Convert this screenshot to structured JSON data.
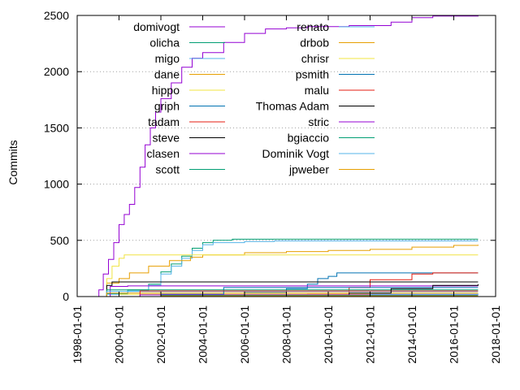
{
  "chart_data": {
    "type": "line",
    "title": "",
    "xlabel": "",
    "ylabel": "Commits",
    "x_axis": "date",
    "xlim": [
      "1998-01-01",
      "2018-01-01"
    ],
    "ylim": [
      0,
      2500
    ],
    "x_ticks": [
      "1998-01-01",
      "2000-01-01",
      "2002-01-01",
      "2004-01-01",
      "2006-01-01",
      "2008-01-01",
      "2010-01-01",
      "2012-01-01",
      "2014-01-01",
      "2016-01-01",
      "2018-01-01"
    ],
    "y_ticks": [
      "0",
      "500",
      "1000",
      "1500",
      "2000",
      "2500"
    ],
    "grid": "dotted",
    "legend_position": "top, two columns",
    "series": [
      {
        "name": "domivogt",
        "color": "#9400d3",
        "points": [
          [
            "1998-12-01",
            0
          ],
          [
            "1999-01-15",
            60
          ],
          [
            "1999-04-01",
            200
          ],
          [
            "1999-07-01",
            330
          ],
          [
            "1999-10-01",
            480
          ],
          [
            "2000-01-01",
            640
          ],
          [
            "2000-04-01",
            730
          ],
          [
            "2000-07-01",
            820
          ],
          [
            "2000-10-01",
            970
          ],
          [
            "2001-01-01",
            1150
          ],
          [
            "2001-04-01",
            1350
          ],
          [
            "2001-07-01",
            1500
          ],
          [
            "2001-10-01",
            1640
          ],
          [
            "2002-01-01",
            1760
          ],
          [
            "2002-07-01",
            1900
          ],
          [
            "2003-01-01",
            2040
          ],
          [
            "2003-07-01",
            2120
          ],
          [
            "2004-01-01",
            2170
          ],
          [
            "2005-01-01",
            2260
          ],
          [
            "2006-01-01",
            2340
          ],
          [
            "2007-01-01",
            2380
          ],
          [
            "2008-01-01",
            2390
          ],
          [
            "2009-01-01",
            2400
          ],
          [
            "2011-01-01",
            2410
          ],
          [
            "2013-01-01",
            2440
          ],
          [
            "2014-01-01",
            2480
          ],
          [
            "2015-01-01",
            2495
          ],
          [
            "2017-03-01",
            2500
          ]
        ]
      },
      {
        "name": "olicha",
        "color": "#009e73",
        "points": [
          [
            "1999-01-01",
            0
          ],
          [
            "1999-06-01",
            25
          ],
          [
            "2000-06-01",
            60
          ],
          [
            "2001-06-01",
            110
          ],
          [
            "2002-01-01",
            220
          ],
          [
            "2002-07-01",
            290
          ],
          [
            "2003-01-01",
            360
          ],
          [
            "2003-07-01",
            430
          ],
          [
            "2004-01-01",
            480
          ],
          [
            "2004-07-01",
            500
          ],
          [
            "2005-06-01",
            510
          ],
          [
            "2017-03-01",
            510
          ]
        ]
      },
      {
        "name": "migo",
        "color": "#56b4e9",
        "points": [
          [
            "1999-01-01",
            0
          ],
          [
            "1999-06-01",
            20
          ],
          [
            "2000-06-01",
            50
          ],
          [
            "2001-06-01",
            100
          ],
          [
            "2002-01-01",
            200
          ],
          [
            "2002-07-01",
            270
          ],
          [
            "2003-01-01",
            340
          ],
          [
            "2003-07-01",
            410
          ],
          [
            "2004-01-01",
            460
          ],
          [
            "2004-07-01",
            480
          ],
          [
            "2006-01-01",
            490
          ],
          [
            "2007-06-01",
            495
          ],
          [
            "2017-03-01",
            495
          ]
        ]
      },
      {
        "name": "dane",
        "color": "#e69f00",
        "points": [
          [
            "1999-01-01",
            0
          ],
          [
            "1999-06-01",
            120
          ],
          [
            "2000-01-01",
            160
          ],
          [
            "2000-07-01",
            210
          ],
          [
            "2001-06-01",
            270
          ],
          [
            "2002-06-01",
            320
          ],
          [
            "2003-06-01",
            350
          ],
          [
            "2004-01-01",
            370
          ],
          [
            "2006-01-01",
            390
          ],
          [
            "2008-01-01",
            400
          ],
          [
            "2010-01-01",
            410
          ],
          [
            "2012-01-01",
            420
          ],
          [
            "2014-01-01",
            440
          ],
          [
            "2016-01-01",
            455
          ],
          [
            "2017-03-01",
            460
          ]
        ]
      },
      {
        "name": "hippo",
        "color": "#f0e442",
        "points": [
          [
            "1999-03-01",
            0
          ],
          [
            "1999-06-01",
            160
          ],
          [
            "1999-09-01",
            270
          ],
          [
            "2000-01-01",
            340
          ],
          [
            "2000-04-01",
            370
          ],
          [
            "2017-03-01",
            370
          ]
        ]
      },
      {
        "name": "griph",
        "color": "#0072b2",
        "points": [
          [
            "2001-01-01",
            0
          ],
          [
            "2002-01-01",
            15
          ],
          [
            "2006-01-01",
            35
          ],
          [
            "2008-01-01",
            70
          ],
          [
            "2009-01-01",
            110
          ],
          [
            "2009-07-01",
            160
          ],
          [
            "2010-01-01",
            180
          ],
          [
            "2010-06-01",
            210
          ],
          [
            "2011-01-01",
            210
          ],
          [
            "2017-03-01",
            210
          ]
        ]
      },
      {
        "name": "tadam",
        "color": "#e51e10",
        "points": [
          [
            "2001-01-01",
            0
          ],
          [
            "2003-01-01",
            10
          ],
          [
            "2009-01-01",
            20
          ],
          [
            "2011-01-01",
            80
          ],
          [
            "2012-01-01",
            150
          ],
          [
            "2014-01-01",
            200
          ],
          [
            "2015-01-01",
            210
          ],
          [
            "2017-03-01",
            210
          ]
        ]
      },
      {
        "name": "steve",
        "color": "#000000",
        "points": [
          [
            "1999-01-01",
            0
          ],
          [
            "1999-06-01",
            100
          ],
          [
            "1999-09-01",
            130
          ],
          [
            "2017-03-01",
            130
          ]
        ]
      },
      {
        "name": "clasen",
        "color": "#9400d3",
        "points": [
          [
            "1999-03-01",
            0
          ],
          [
            "1999-08-01",
            90
          ],
          [
            "2000-06-01",
            95
          ],
          [
            "2017-03-01",
            95
          ]
        ]
      },
      {
        "name": "scott",
        "color": "#009e73",
        "points": [
          [
            "1999-01-01",
            0
          ],
          [
            "1999-06-01",
            60
          ],
          [
            "2017-03-01",
            60
          ]
        ]
      },
      {
        "name": "renato",
        "color": "#56b4e9",
        "points": [
          [
            "1999-01-01",
            0
          ],
          [
            "1999-06-01",
            45
          ],
          [
            "2017-03-01",
            45
          ]
        ]
      },
      {
        "name": "drbob",
        "color": "#e69f00",
        "points": [
          [
            "1999-01-01",
            0
          ],
          [
            "1999-06-01",
            30
          ],
          [
            "2017-03-01",
            30
          ]
        ]
      },
      {
        "name": "chrisr",
        "color": "#f0e442",
        "points": [
          [
            "1999-06-01",
            0
          ],
          [
            "2000-01-01",
            20
          ],
          [
            "2017-03-01",
            20
          ]
        ]
      },
      {
        "name": "psmith",
        "color": "#0072b2",
        "points": [
          [
            "2000-01-01",
            0
          ],
          [
            "2002-01-01",
            20
          ],
          [
            "2005-01-01",
            80
          ],
          [
            "2017-03-01",
            80
          ]
        ]
      },
      {
        "name": "malu",
        "color": "#e51e10",
        "points": [
          [
            "2000-01-01",
            0
          ],
          [
            "2001-01-01",
            50
          ],
          [
            "2017-03-01",
            50
          ]
        ]
      },
      {
        "name": "Thomas Adam",
        "color": "#000000",
        "points": [
          [
            "2009-01-01",
            0
          ],
          [
            "2011-01-01",
            30
          ],
          [
            "2013-01-01",
            70
          ],
          [
            "2015-01-01",
            100
          ],
          [
            "2017-03-01",
            110
          ]
        ]
      },
      {
        "name": "stric",
        "color": "#9400d3",
        "points": [
          [
            "2000-01-01",
            0
          ],
          [
            "2001-01-01",
            15
          ],
          [
            "2017-03-01",
            15
          ]
        ]
      },
      {
        "name": "bgiaccio",
        "color": "#009e73",
        "points": [
          [
            "2000-01-01",
            0
          ],
          [
            "2002-01-01",
            10
          ],
          [
            "2017-03-01",
            10
          ]
        ]
      },
      {
        "name": "Dominik Vogt",
        "color": "#56b4e9",
        "points": [
          [
            "2009-01-01",
            0
          ],
          [
            "2012-01-01",
            20
          ],
          [
            "2017-03-01",
            25
          ]
        ]
      },
      {
        "name": "jpweber",
        "color": "#e69f00",
        "points": [
          [
            "2001-01-01",
            0
          ],
          [
            "2002-01-01",
            5
          ],
          [
            "2017-03-01",
            5
          ]
        ]
      }
    ]
  }
}
